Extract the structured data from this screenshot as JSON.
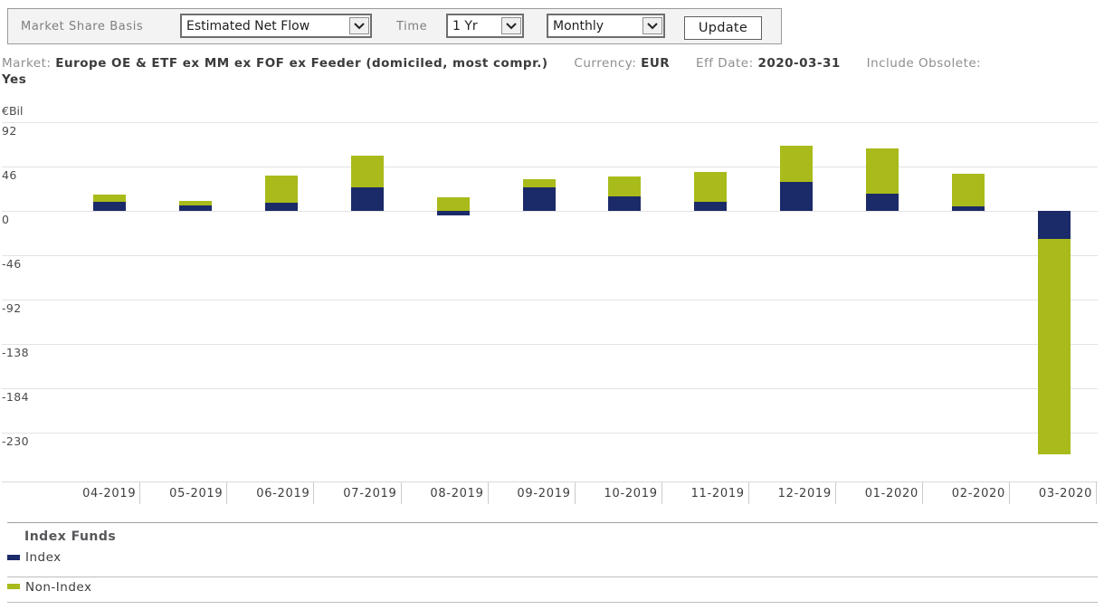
{
  "toolbar": {
    "market_share_basis_label": "Market Share Basis",
    "basis_value": "Estimated Net Flow",
    "time_label": "Time",
    "time_value": "1 Yr",
    "frequency_value": "Monthly",
    "update_label": "Update"
  },
  "info": {
    "market_label": "Market:",
    "market_value": "Europe OE & ETF ex MM ex FOF ex Feeder (domiciled, most compr.)",
    "currency_label": "Currency:",
    "currency_value": "EUR",
    "eff_date_label": "Eff Date:",
    "eff_date_value": "2020-03-31",
    "include_obsolete_label": "Include Obsolete:",
    "include_obsolete_value": "Yes"
  },
  "chart_data": {
    "type": "bar",
    "stacked": true,
    "title": "",
    "xlabel": "",
    "ylabel": "€Bil",
    "grid": "horizontal",
    "legend_position": "bottom",
    "ylim": [
      -280,
      110
    ],
    "yticks": [
      92,
      46,
      0,
      -46,
      -92,
      -138,
      -184,
      -230
    ],
    "categories": [
      "04-2019",
      "05-2019",
      "06-2019",
      "07-2019",
      "08-2019",
      "09-2019",
      "10-2019",
      "11-2019",
      "12-2019",
      "01-2020",
      "02-2020",
      "03-2020"
    ],
    "series": [
      {
        "name": "Index",
        "color": "#1b2a68",
        "values": [
          9,
          6,
          8,
          24,
          -5,
          24,
          15,
          9,
          30,
          18,
          5,
          -29
        ]
      },
      {
        "name": "Non-Index",
        "color": "#a9bb1a",
        "values": [
          8,
          4,
          29,
          33,
          14,
          9,
          21,
          31,
          38,
          47,
          34,
          -224
        ]
      }
    ]
  },
  "legend": {
    "title": "Index Funds",
    "items": [
      {
        "label": "Index",
        "color": "#1b2a68"
      },
      {
        "label": "Non-Index",
        "color": "#a9bb1a"
      }
    ]
  },
  "colors": {
    "index": "#1b2a68",
    "non_index": "#a9bb1a",
    "gridline": "#e3e3e3",
    "toolbar_bg": "#f3f3f3"
  }
}
